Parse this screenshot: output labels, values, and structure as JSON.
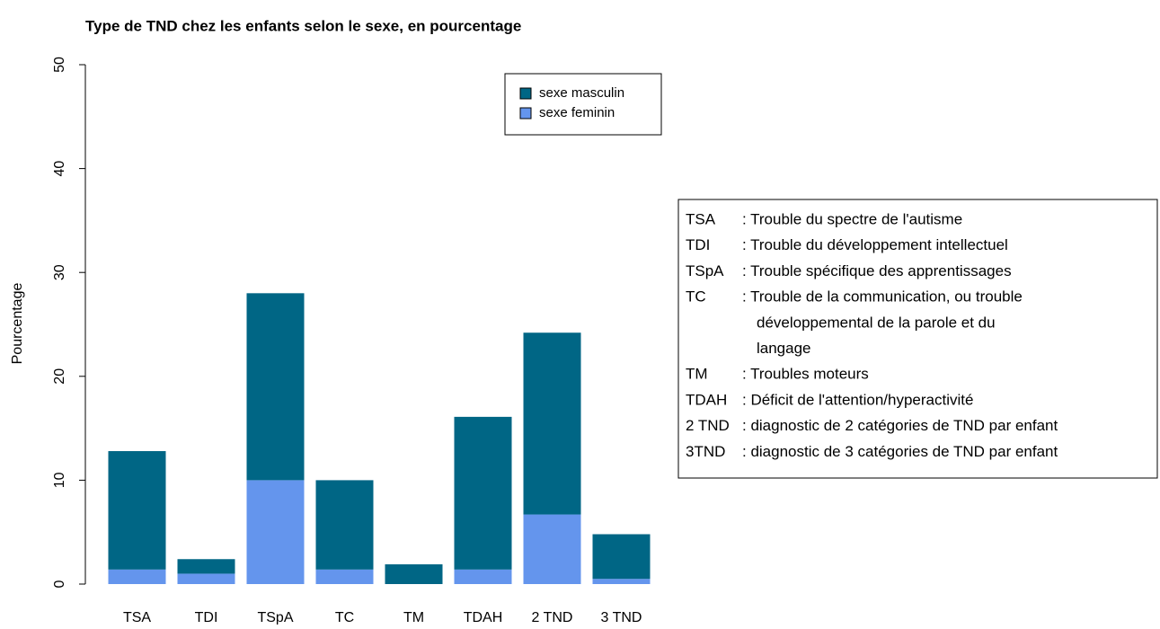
{
  "chart_data": {
    "type": "stacked_bar",
    "title": "Type de TND chez les enfants selon le sexe, en pourcentage",
    "y_label": "Pourcentage",
    "categories": [
      "TSA",
      "TDI",
      "TSpA",
      "TC",
      "TM",
      "TDAH",
      "2 TND",
      "3 TND"
    ],
    "series": [
      {
        "name": "sexe masculin",
        "color": "#006685",
        "values": [
          11.4,
          1.4,
          18,
          8.6,
          1.9,
          14.7,
          17.5,
          4.3
        ]
      },
      {
        "name": "sexe feminin",
        "color": "#6495ed",
        "values": [
          1.4,
          1.0,
          10,
          1.4,
          0,
          1.4,
          6.7,
          0.5
        ]
      }
    ],
    "stack_order": "bottom_last_series",
    "ylim": [
      0,
      50
    ],
    "yticks": [
      0,
      10,
      20,
      30,
      40,
      50
    ],
    "legend": "top-right"
  },
  "glossary": [
    {
      "term": "TSA",
      "lines": [
        ": Trouble du spectre de l'autisme"
      ]
    },
    {
      "term": "TDI",
      "lines": [
        ": Trouble du développement intellectuel"
      ]
    },
    {
      "term": "TSpA",
      "lines": [
        ": Trouble spécifique des apprentissages"
      ]
    },
    {
      "term": "TC",
      "lines": [
        ": Trouble de la communication, ou trouble",
        "développemental de la parole et du",
        "langage"
      ]
    },
    {
      "term": "TM",
      "lines": [
        ": Troubles moteurs"
      ]
    },
    {
      "term": "TDAH",
      "lines": [
        ": Déficit de l'attention/hyperactivité"
      ]
    },
    {
      "term": "2 TND",
      "lines": [
        ": diagnostic de 2 catégories de TND par enfant"
      ]
    },
    {
      "term": "3TND",
      "lines": [
        ": diagnostic de 3 catégories de TND par enfant"
      ]
    }
  ]
}
